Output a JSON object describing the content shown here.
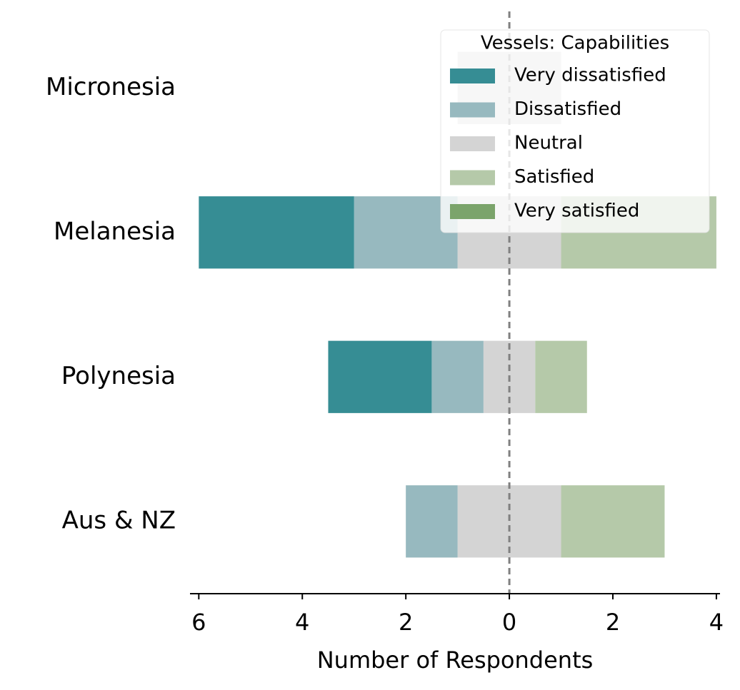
{
  "chart_data": {
    "type": "diverging_bar",
    "xlabel": "Number of Respondents",
    "legend_title": "Vessels: Capabilities",
    "legend_loc": "upper right",
    "categories": [
      "Micronesia",
      "Melanesia",
      "Polynesia",
      "Aus & NZ"
    ],
    "neutral_series": 2,
    "series": [
      {
        "name": "Very dissatisfied",
        "color": "#368d94",
        "values": [
          0,
          3,
          2,
          0
        ]
      },
      {
        "name": "Dissatisfied",
        "color": "#97b9bf",
        "values": [
          0,
          2,
          1,
          1
        ]
      },
      {
        "name": "Neutral",
        "color": "#d4d4d4",
        "values": [
          2,
          2,
          1,
          2
        ]
      },
      {
        "name": "Satisfied",
        "color": "#b5c9a9",
        "values": [
          0,
          3,
          1,
          2
        ]
      },
      {
        "name": "Very satisfied",
        "color": "#7ba46b",
        "values": [
          0,
          0,
          0,
          0
        ]
      }
    ],
    "xlim": [
      -6.17,
      4.07
    ],
    "xticks": [
      {
        "value": -6,
        "label": "6"
      },
      {
        "value": -4,
        "label": "4"
      },
      {
        "value": -2,
        "label": "2"
      },
      0,
      2,
      4
    ],
    "zero_line": true
  }
}
